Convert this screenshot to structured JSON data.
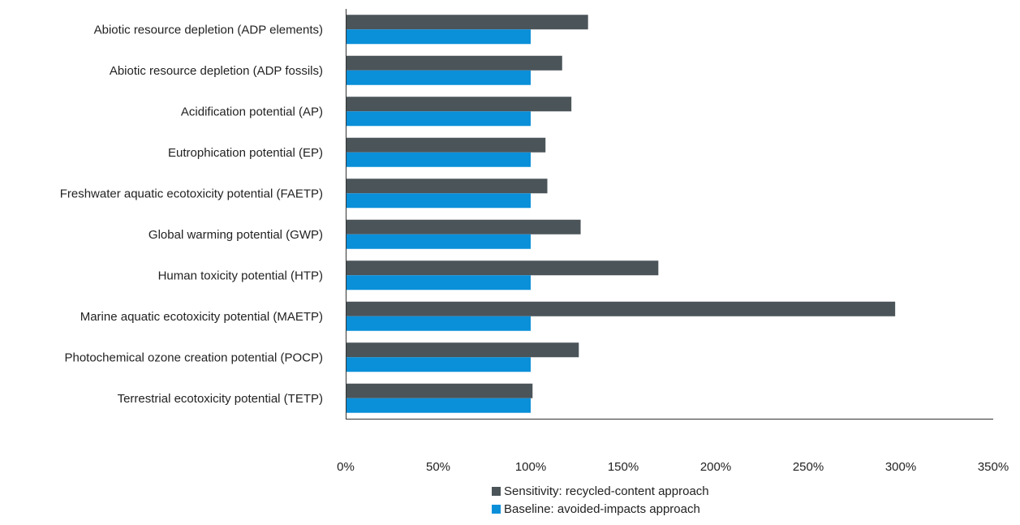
{
  "chart_data": {
    "type": "bar",
    "orientation": "horizontal",
    "categories": [
      "Abiotic resource depletion (ADP elements)",
      "Abiotic resource depletion (ADP fossils)",
      "Acidification potential (AP)",
      "Eutrophication potential (EP)",
      "Freshwater aquatic ecotoxicity potential (FAETP)",
      "Global warming potential (GWP)",
      "Human toxicity potential (HTP)",
      "Marine aquatic ecotoxicity potential (MAETP)",
      "Photochemical ozone creation potential (POCP)",
      "Terrestrial ecotoxicity potential (TETP)"
    ],
    "series": [
      {
        "name": "Sensitivity: recycled-content approach",
        "color": "#4a5459",
        "values": [
          131,
          117,
          122,
          108,
          109,
          127,
          169,
          297,
          126,
          101
        ]
      },
      {
        "name": "Baseline: avoided-impacts approach",
        "color": "#0a8fd9",
        "values": [
          100,
          100,
          100,
          100,
          100,
          100,
          100,
          100,
          100,
          100
        ]
      }
    ],
    "xlim": [
      0,
      350
    ],
    "xticks": [
      "0%",
      "50%",
      "100%",
      "150%",
      "200%",
      "250%",
      "300%",
      "350%"
    ],
    "legend_position": "bottom",
    "grid": false
  }
}
